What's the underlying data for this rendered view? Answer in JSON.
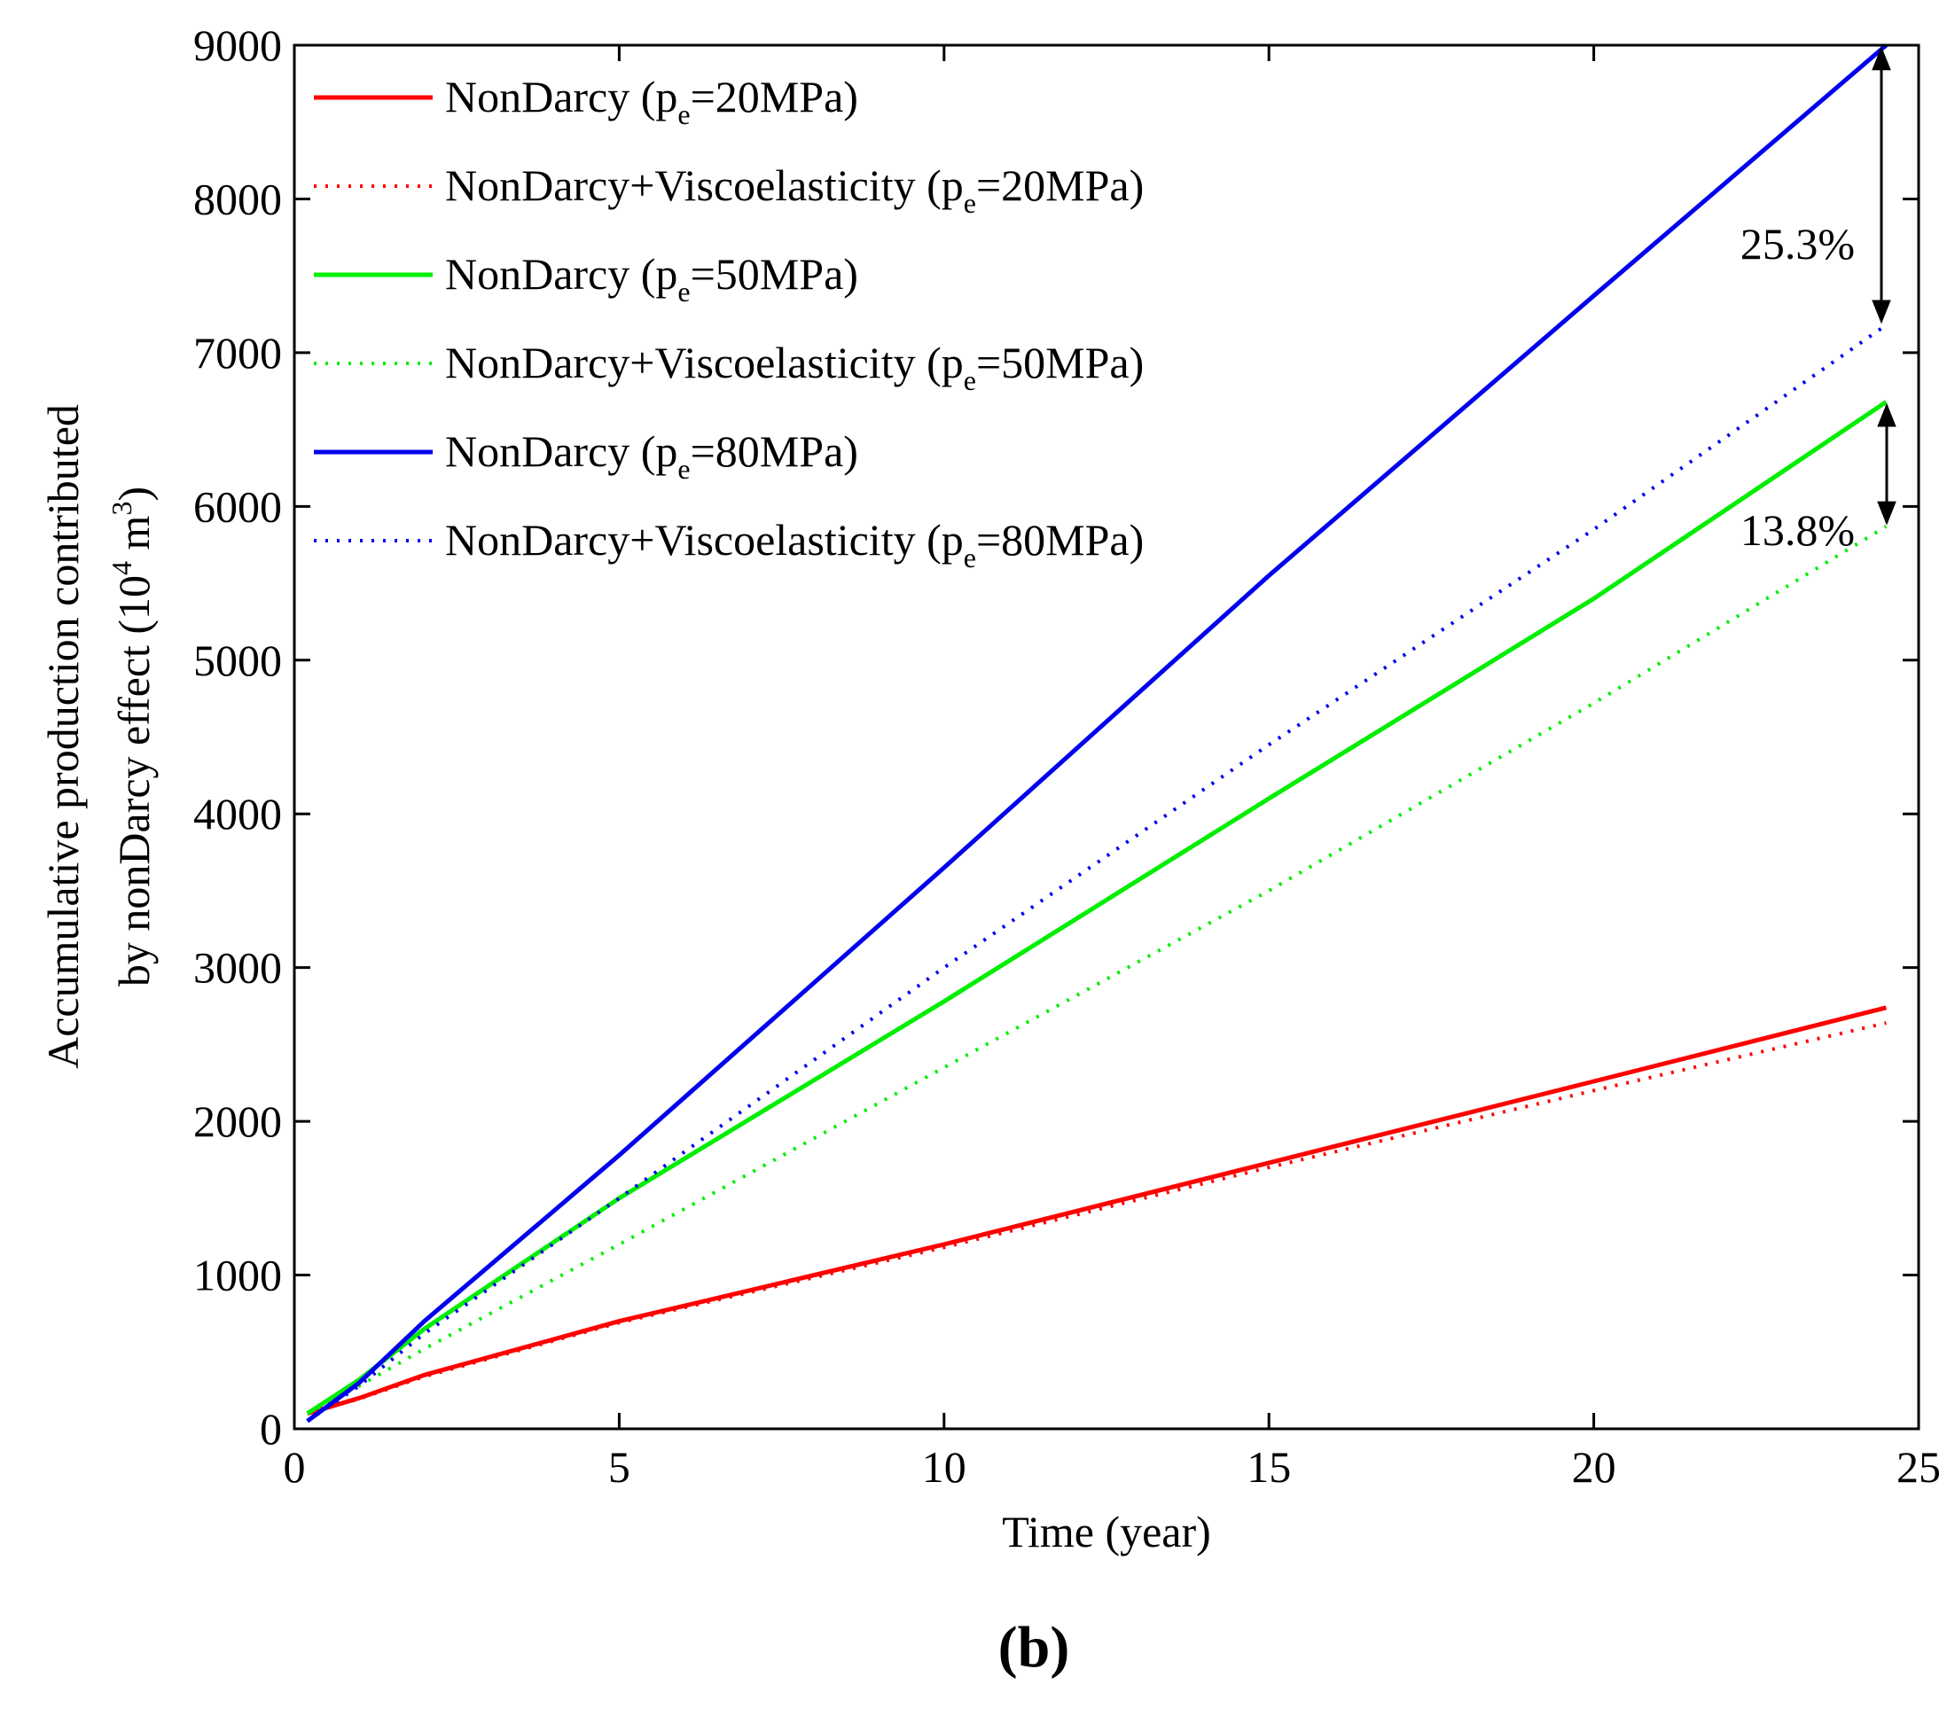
{
  "chart_data": {
    "type": "line",
    "title": "",
    "xlabel": "Time (year)",
    "ylabel_line1": "Accumulative production contributed",
    "ylabel_line2_prefix": "by nonDarcy effect (10",
    "ylabel_sup1": "4",
    "ylabel_mid": " m",
    "ylabel_sup2": "3",
    "ylabel_suffix": ")",
    "xlim": [
      0,
      25
    ],
    "ylim": [
      0,
      9000
    ],
    "xticks": [
      0,
      5,
      10,
      15,
      20,
      25
    ],
    "yticks": [
      0,
      1000,
      2000,
      3000,
      4000,
      5000,
      6000,
      7000,
      8000,
      9000
    ],
    "grid": false,
    "legend_position": "top-left",
    "series": [
      {
        "name": "NonDarcy (pe=20MPa)",
        "legend_main": "NonDarcy (p",
        "legend_sub": "e",
        "legend_end": "=20MPa)",
        "color": "#ff0000",
        "style": "solid",
        "x": [
          0.2,
          1,
          2,
          5,
          10,
          15,
          20,
          24.5
        ],
        "y": [
          100,
          200,
          350,
          700,
          1200,
          1730,
          2260,
          2740
        ]
      },
      {
        "name": "NonDarcy+Viscoelasticity (pe=20MPa)",
        "legend_main": "NonDarcy+Viscoelasticity (p",
        "legend_sub": "e",
        "legend_end": "=20MPa)",
        "color": "#ff0000",
        "style": "dotted",
        "x": [
          0.2,
          1,
          2,
          5,
          10,
          15,
          20,
          24.5
        ],
        "y": [
          100,
          195,
          340,
          690,
          1180,
          1700,
          2200,
          2640
        ]
      },
      {
        "name": "NonDarcy (pe=50MPa)",
        "legend_main": "NonDarcy (p",
        "legend_sub": "e",
        "legend_end": "=50MPa)",
        "color": "#00ee00",
        "style": "solid",
        "x": [
          0.2,
          1,
          2,
          5,
          10,
          15,
          20,
          24.5
        ],
        "y": [
          100,
          320,
          650,
          1500,
          2780,
          4100,
          5400,
          6680
        ]
      },
      {
        "name": "NonDarcy+Viscoelasticity (pe=50MPa)",
        "legend_main": "NonDarcy+Viscoelasticity (p",
        "legend_sub": "e",
        "legend_end": "=50MPa)",
        "color": "#00ee00",
        "style": "dotted",
        "x": [
          0.2,
          1,
          2,
          5,
          10,
          15,
          20,
          24.5
        ],
        "y": [
          100,
          280,
          520,
          1200,
          2350,
          3500,
          4720,
          5870
        ]
      },
      {
        "name": "NonDarcy (pe=80MPa)",
        "legend_main": "NonDarcy (p",
        "legend_sub": "e",
        "legend_end": "=80MPa)",
        "color": "#0000ee",
        "style": "solid",
        "x": [
          0.2,
          1,
          2,
          5,
          10,
          15,
          20,
          24.5
        ],
        "y": [
          50,
          300,
          700,
          1780,
          3650,
          5550,
          7370,
          9000
        ]
      },
      {
        "name": "NonDarcy+Viscoelasticity (pe=80MPa)",
        "legend_main": "NonDarcy+Viscoelasticity (p",
        "legend_sub": "e",
        "legend_end": "=80MPa)",
        "color": "#0000ee",
        "style": "dotted",
        "x": [
          0.2,
          1,
          2,
          5,
          10,
          15,
          20,
          24.5
        ],
        "y": [
          50,
          280,
          620,
          1500,
          3000,
          4450,
          5850,
          7180
        ]
      }
    ],
    "annotations": [
      {
        "text": "25.3%",
        "x": 24.5,
        "y_top": 9000,
        "y_bottom": 7180
      },
      {
        "text": "13.8%",
        "x": 24.5,
        "y_top": 6680,
        "y_bottom": 5870
      }
    ]
  },
  "panel_label": "(b)"
}
